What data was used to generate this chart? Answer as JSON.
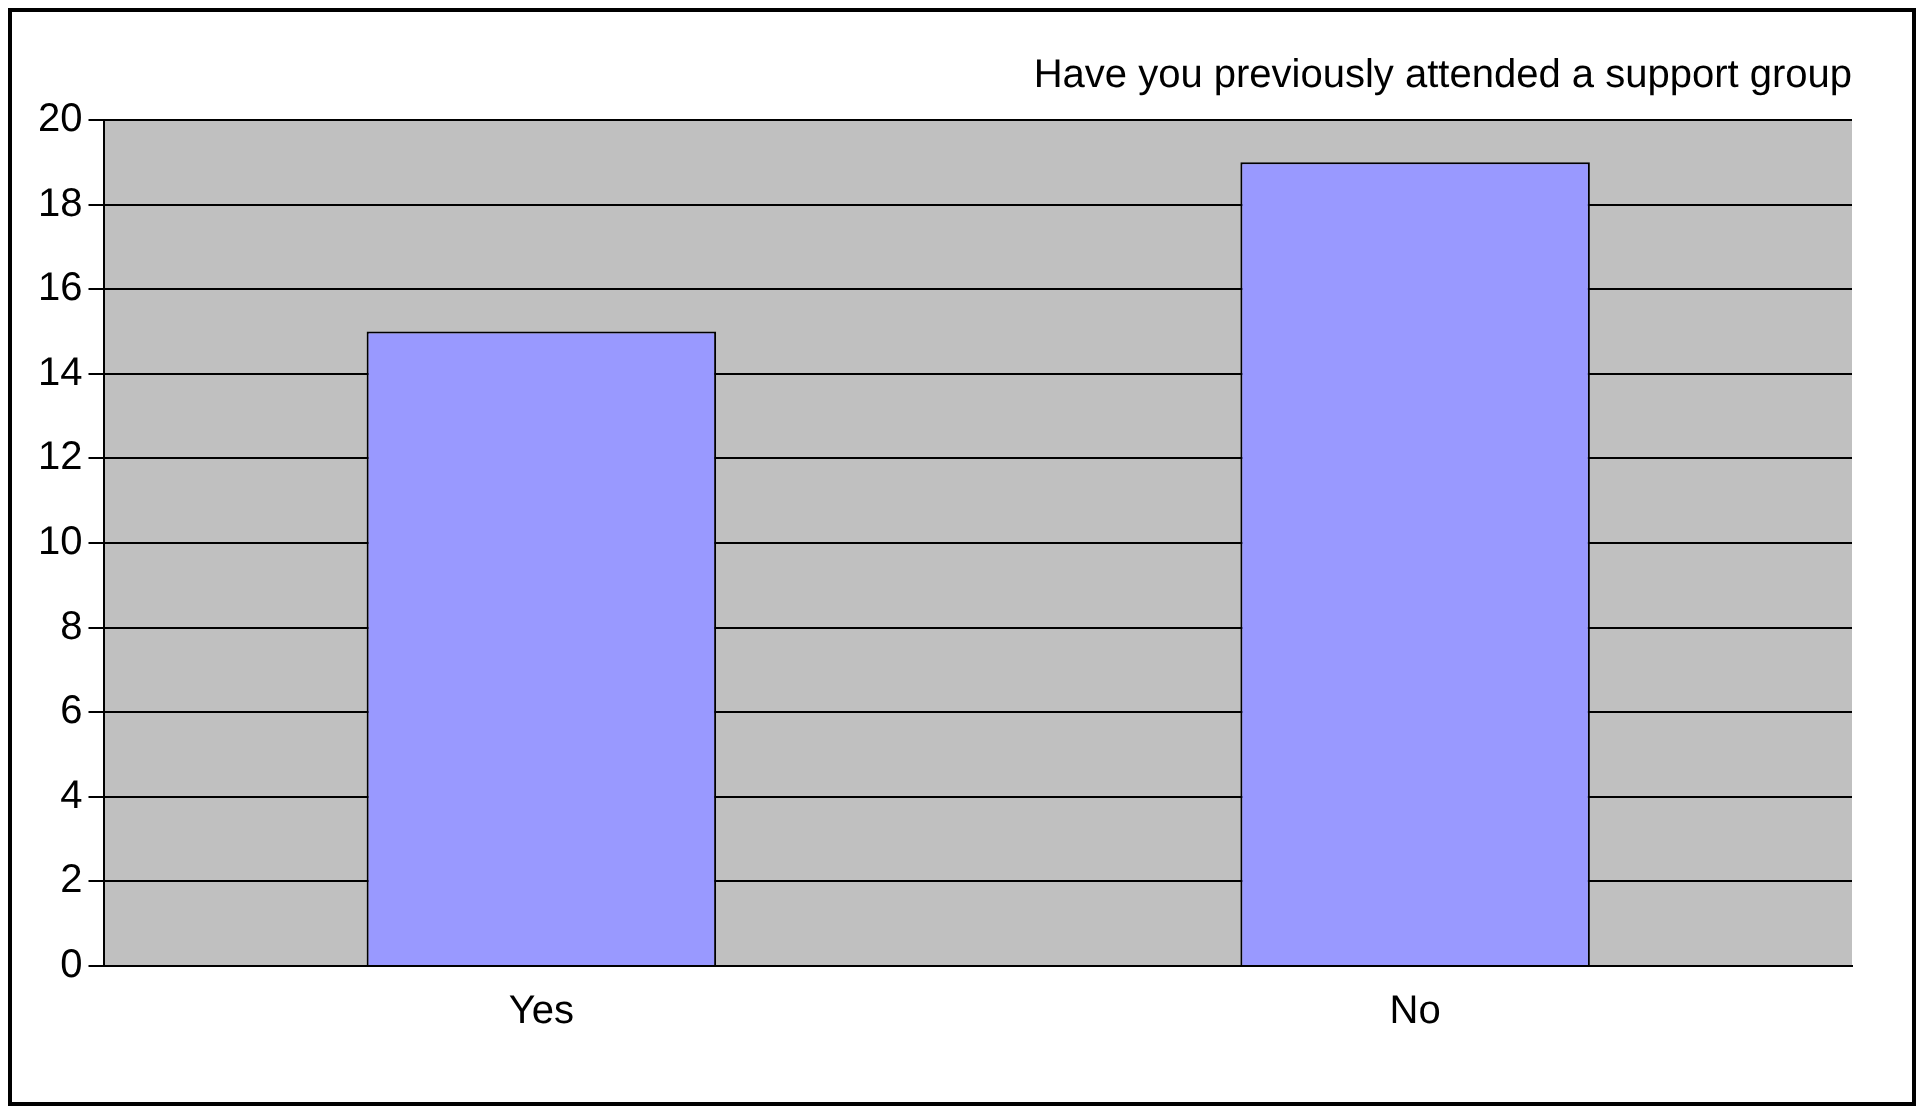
{
  "chart_data": {
    "type": "bar",
    "title": "Have you previously attended a support group",
    "categories": [
      "Yes",
      "No"
    ],
    "values": [
      15,
      19
    ],
    "color": "#9999ff",
    "ylim": [
      0,
      20
    ],
    "yticks": [
      0,
      2,
      4,
      6,
      8,
      10,
      12,
      14,
      16,
      18,
      20
    ],
    "grid": "y",
    "legend": false
  }
}
